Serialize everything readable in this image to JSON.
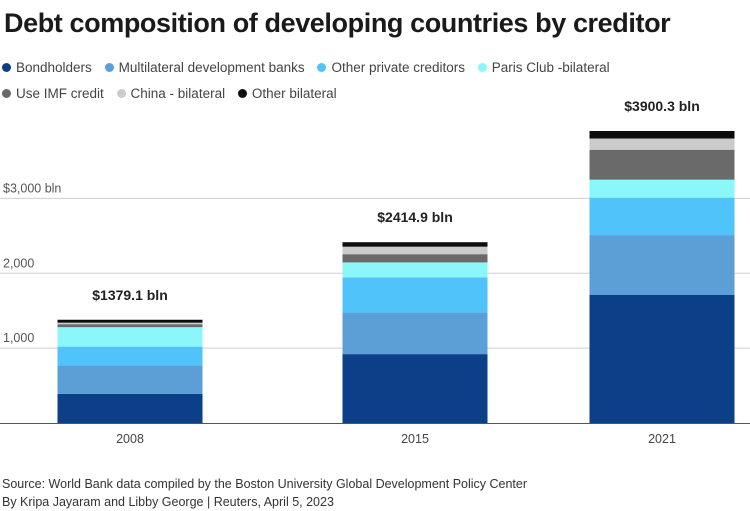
{
  "title": "Debt composition of developing countries by creditor",
  "legend": [
    {
      "label": "Bondholders",
      "color": "#0b3f87",
      "icon": "circle-swatch"
    },
    {
      "label": "Multilateral development banks",
      "color": "#5b9fd6",
      "icon": "circle-swatch"
    },
    {
      "label": "Other private creditors",
      "color": "#4fc3fa",
      "icon": "circle-swatch"
    },
    {
      "label": "Paris Club -bilateral",
      "color": "#8cf7fb",
      "icon": "circle-swatch"
    },
    {
      "label": "Use IMF credit",
      "color": "#6a6a6a",
      "icon": "circle-swatch"
    },
    {
      "label": "China - bilateral",
      "color": "#cbcbcb",
      "icon": "circle-swatch"
    },
    {
      "label": "Other bilateral",
      "color": "#0d0d0d",
      "icon": "circle-swatch"
    }
  ],
  "chart_data": {
    "type": "bar",
    "stacked": true,
    "title": "Debt composition of developing countries by creditor",
    "categories": [
      "2008",
      "2015",
      "2021"
    ],
    "totals_labels": [
      "$1379.1 bln",
      "$2414.9 bln",
      "$3900.3 bln"
    ],
    "series": [
      {
        "name": "Bondholders",
        "values": [
          390,
          920,
          1710
        ]
      },
      {
        "name": "Multilateral development banks",
        "values": [
          380,
          555,
          800
        ]
      },
      {
        "name": "Other private creditors",
        "values": [
          250,
          470,
          500
        ]
      },
      {
        "name": "Paris Club -bilateral",
        "values": [
          260,
          200,
          240
        ]
      },
      {
        "name": "Use IMF credit",
        "values": [
          40,
          110,
          400
        ]
      },
      {
        "name": "China - bilateral",
        "values": [
          20,
          100,
          150
        ]
      },
      {
        "name": "Other bilateral",
        "values": [
          39.1,
          59.9,
          100.3
        ]
      }
    ],
    "ylim": [
      0,
      3900.3
    ],
    "yticks": [
      1000,
      2000,
      3000
    ],
    "ytick_labels": [
      "1,000",
      "2,000",
      "$3,000 bln"
    ],
    "grid": true,
    "xlabel": "",
    "ylabel": ""
  },
  "footer": {
    "source": "Source: World Bank data compiled by the Boston University Global Development Policy Center",
    "byline": "By Kripa Jayaram and Libby George | Reuters, April 5, 2023"
  }
}
